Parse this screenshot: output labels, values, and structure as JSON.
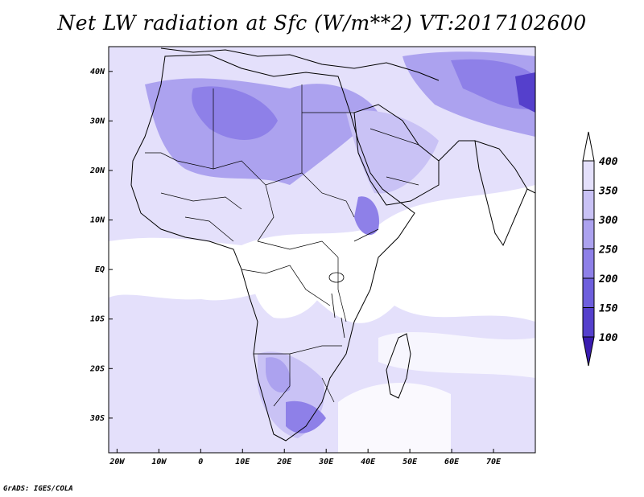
{
  "title": "Net LW radiation at Sfc (W/m**2) VT:2017102600",
  "footer": "GrADS: IGES/COLA",
  "map": {
    "lat_labels": [
      "40N",
      "30N",
      "20N",
      "10N",
      "EQ",
      "10S",
      "20S",
      "30S"
    ],
    "lon_labels": [
      "20W",
      "10W",
      "0",
      "10E",
      "20E",
      "30E",
      "40E",
      "50E",
      "60E",
      "70E"
    ],
    "domain": {
      "lon_min": -22,
      "lon_max": 80,
      "lat_min": -37,
      "lat_max": 45
    }
  },
  "colorbar": {
    "levels": [
      "100",
      "150",
      "200",
      "250",
      "300",
      "350",
      "400"
    ],
    "colors": [
      "#3a1cb0",
      "#5540cc",
      "#6e5fdd",
      "#8e80e8",
      "#aca2ef",
      "#c9c2f5",
      "#e4e0fb",
      "#ffffff"
    ]
  }
}
